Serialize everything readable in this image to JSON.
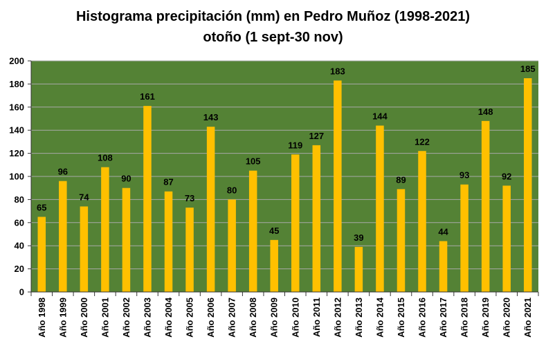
{
  "chart_data": {
    "type": "bar",
    "title": "Histograma precipitación (mm) en Pedro Muñoz (1998-2021)",
    "subtitle": "otoño  (1 sept-30 nov)",
    "xlabel": "",
    "ylabel": "",
    "ylim": [
      0,
      200
    ],
    "yticks": [
      0,
      20,
      40,
      60,
      80,
      100,
      120,
      140,
      160,
      180,
      200
    ],
    "grid": true,
    "legend": "none",
    "colors": {
      "bar": "#ffc000",
      "plot_bg": "#548235",
      "grid": "#a9a9a9"
    },
    "categories": [
      "Año 1998",
      "Año 1999",
      "Año 2000",
      "Año 2001",
      "Año 2002",
      "Año 2003",
      "Año 2004",
      "Año 2005",
      "Año 2006",
      "Año 2007",
      "Año 2008",
      "Año 2009",
      "Año 2010",
      "Año 2011",
      "Año 2012",
      "Año 2013",
      "Año 2014",
      "Año 2015",
      "Año 2016",
      "Año 2017",
      "Año 2018",
      "Año 2019",
      "Año 2020",
      "Año 2021"
    ],
    "values": [
      65,
      96,
      74,
      108,
      90,
      161,
      87,
      73,
      143,
      80,
      105,
      45,
      119,
      127,
      183,
      39,
      144,
      89,
      122,
      44,
      93,
      148,
      92,
      185
    ]
  }
}
